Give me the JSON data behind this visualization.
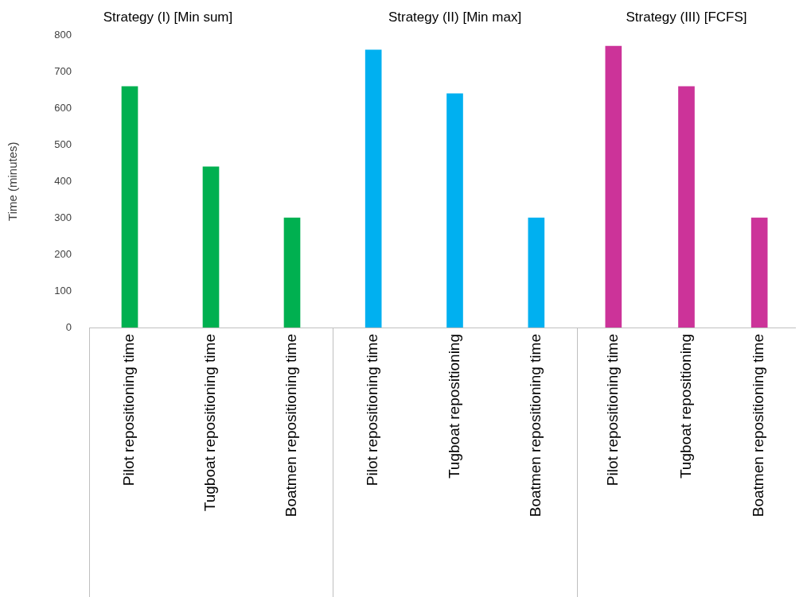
{
  "chart_data": [
    {
      "type": "bar",
      "title": "Strategy (I) [Min sum]",
      "ylabel": "Time (minutes)",
      "categories": [
        "Pilot repositioning time",
        "Tugboat repositioning time",
        "Boatmen repositioning time"
      ],
      "values": [
        660,
        440,
        300
      ],
      "color": "#00b050",
      "ylim": [
        0,
        800
      ],
      "yticks": [
        0,
        100,
        200,
        300,
        400,
        500,
        600,
        700,
        800
      ],
      "grid": false
    },
    {
      "type": "bar",
      "title": "Strategy (II) [Min max]",
      "categories": [
        "Pilot repositioning time",
        "Tugboat repositioning",
        "Boatmen repositioning time"
      ],
      "values": [
        760,
        640,
        300
      ],
      "color": "#00b0f0",
      "ylim": [
        0,
        800
      ],
      "tick_labels": "x",
      "grid": false
    },
    {
      "type": "bar",
      "title": "Strategy (III) [FCFS]",
      "categories": [
        "Pilot repositioning time",
        "Tugboat repositioning",
        "Boatmen repositioning time"
      ],
      "values": [
        770,
        660,
        300
      ],
      "color": "#cc3399",
      "ylim": [
        0,
        800
      ],
      "tick_labels": "x",
      "grid": false
    }
  ]
}
